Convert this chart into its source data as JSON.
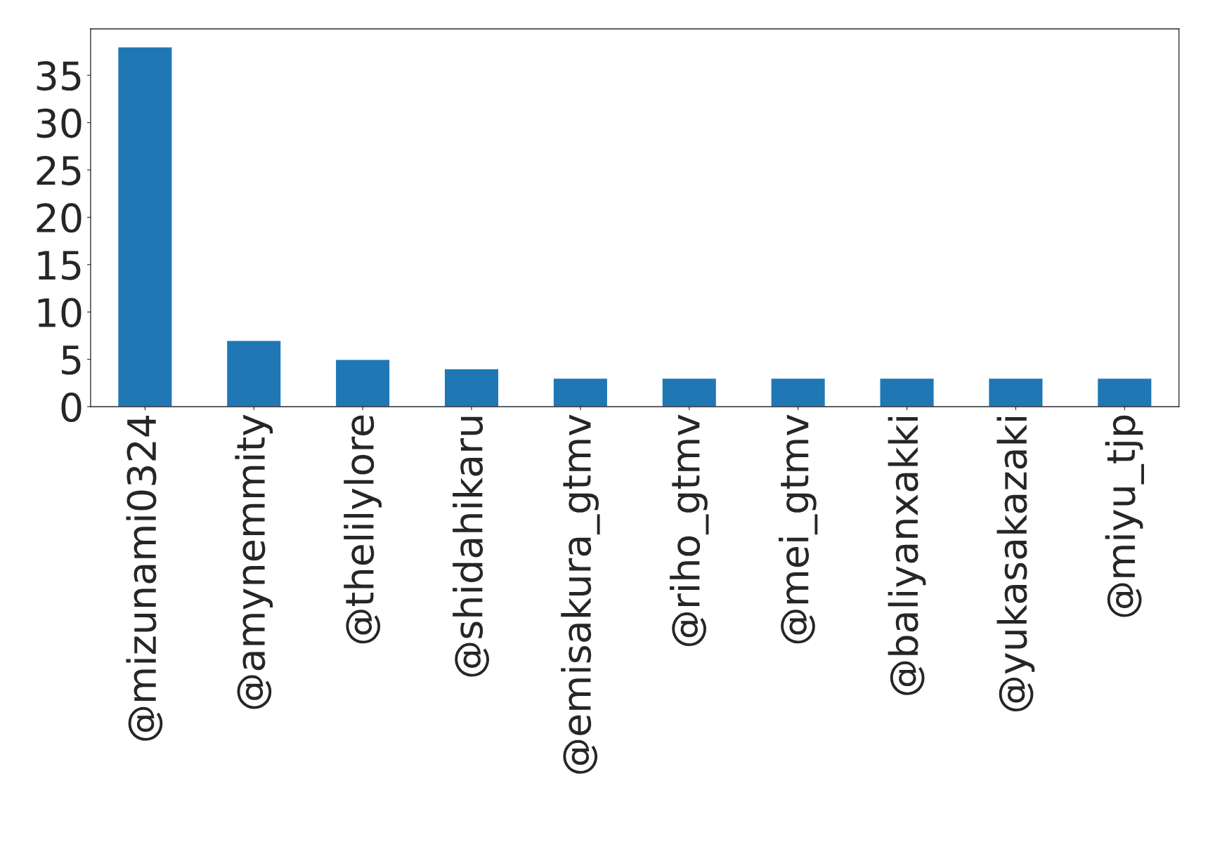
{
  "chart_data": {
    "type": "bar",
    "categories": [
      "@mizunami0324",
      "@amynemmity",
      "@thelilylore",
      "@shidahikaru",
      "@emisakura_gtmv",
      "@riho_gtmv",
      "@mei_gtmv",
      "@baliyanxakki",
      "@yukasakazaki",
      "@miyu_tjp"
    ],
    "values": [
      38,
      7,
      5,
      4,
      3,
      3,
      3,
      3,
      3,
      3
    ],
    "color": "#1f77b4",
    "ylim": [
      0,
      39.9
    ],
    "yticks": [
      0,
      5,
      10,
      15,
      20,
      25,
      30,
      35
    ],
    "grid": false,
    "legend": false
  }
}
